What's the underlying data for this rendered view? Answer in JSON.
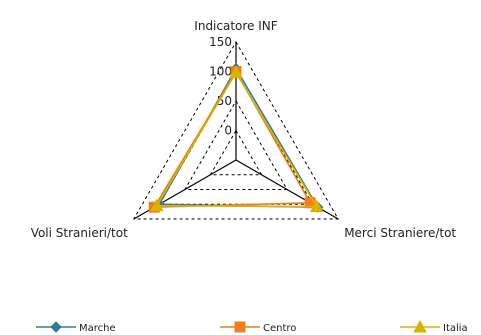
{
  "chart_data": {
    "type": "radar",
    "axes": [
      "Indicatore INF",
      "Merci Straniere/tot",
      "Voli Stranieri/tot"
    ],
    "ticks": [
      0,
      50,
      100,
      150
    ],
    "range": [
      -50,
      150
    ],
    "legend_position": "bottom",
    "series": [
      {
        "name": "Marche",
        "values": [
          105,
          110,
          100
        ],
        "color": "#2e7d9a",
        "marker": "diamond"
      },
      {
        "name": "Centro",
        "values": [
          100,
          95,
          110
        ],
        "color": "#f07c1e",
        "marker": "square"
      },
      {
        "name": "Italia",
        "values": [
          98,
          108,
          105
        ],
        "color": "#d9b300",
        "marker": "triangle"
      }
    ]
  }
}
